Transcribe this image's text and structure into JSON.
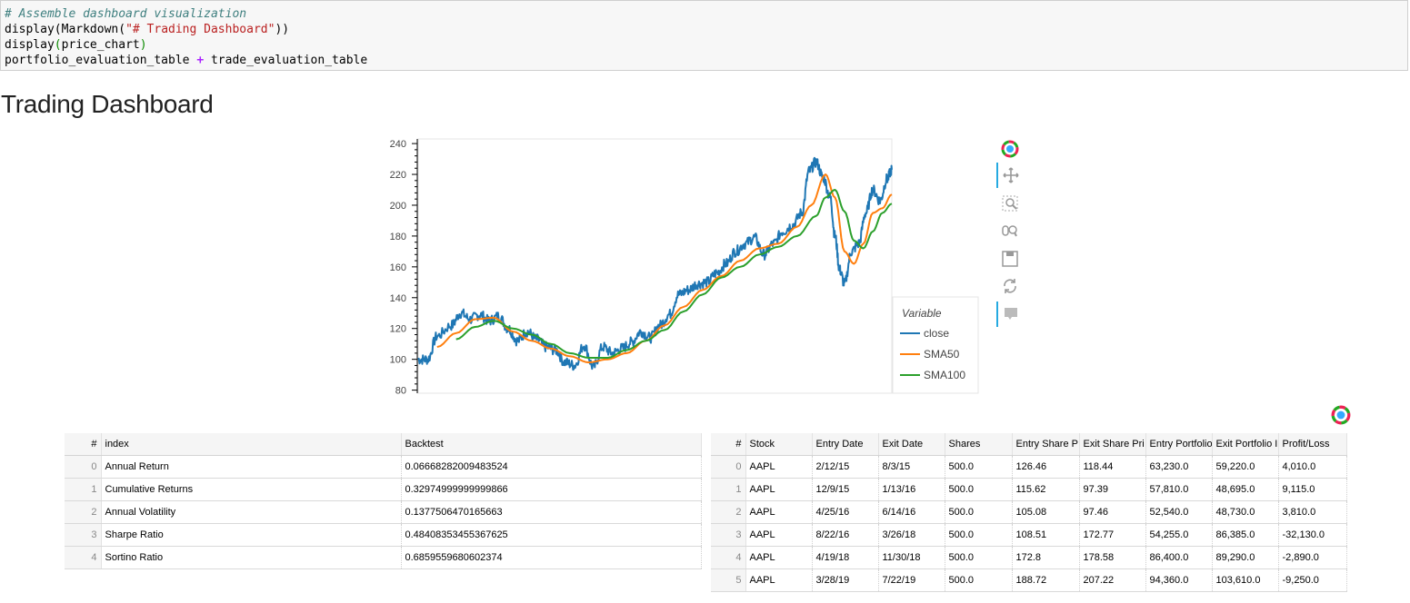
{
  "code": {
    "comment": "# Assemble dashboard visualization",
    "line2_a": "display(Markdown(",
    "line2_str": "\"# Trading Dashboard\"",
    "line2_b": "))",
    "line3_a": "display",
    "line3_paren_open": "(",
    "line3_b": "price_chart",
    "line3_paren_close": ")",
    "line4_a": "portfolio_evaluation_table ",
    "line4_op": "+",
    "line4_b": " trade_evaluation_table"
  },
  "dashboard_title": "Trading Dashboard",
  "toolbar": {
    "items": [
      "bokeh-logo-icon",
      "pan-icon",
      "box-zoom-icon",
      "wheel-zoom-icon",
      "save-icon",
      "reset-icon",
      "hover-icon"
    ]
  },
  "colors": {
    "close": "#1f77b4",
    "sma50": "#ff7f0e",
    "sma100": "#2ca02c",
    "accent": "#26aae1"
  },
  "chart_data": {
    "type": "line",
    "ylim": [
      78,
      243
    ],
    "yticks": [
      "80",
      "100",
      "120",
      "140",
      "160",
      "180",
      "200",
      "220",
      "240"
    ],
    "legend": {
      "title": "Variable",
      "placement": "outside-right-bottom",
      "entries": [
        "close",
        "SMA50",
        "SMA100"
      ]
    },
    "series": [
      {
        "name": "close",
        "anchors": [
          [
            0,
            100
          ],
          [
            0.02,
            100
          ],
          [
            0.04,
            115
          ],
          [
            0.07,
            122
          ],
          [
            0.09,
            130
          ],
          [
            0.11,
            126
          ],
          [
            0.13,
            129
          ],
          [
            0.15,
            125
          ],
          [
            0.17,
            128
          ],
          [
            0.19,
            120
          ],
          [
            0.21,
            112
          ],
          [
            0.23,
            118
          ],
          [
            0.25,
            113
          ],
          [
            0.27,
            108
          ],
          [
            0.29,
            106
          ],
          [
            0.31,
            98
          ],
          [
            0.33,
            96
          ],
          [
            0.35,
            109
          ],
          [
            0.37,
            95
          ],
          [
            0.39,
            108
          ],
          [
            0.41,
            104
          ],
          [
            0.43,
            107
          ],
          [
            0.45,
            111
          ],
          [
            0.47,
            118
          ],
          [
            0.49,
            114
          ],
          [
            0.51,
            122
          ],
          [
            0.53,
            129
          ],
          [
            0.55,
            142
          ],
          [
            0.57,
            145
          ],
          [
            0.59,
            149
          ],
          [
            0.61,
            150
          ],
          [
            0.63,
            156
          ],
          [
            0.65,
            162
          ],
          [
            0.67,
            170
          ],
          [
            0.69,
            175
          ],
          [
            0.71,
            179
          ],
          [
            0.73,
            168
          ],
          [
            0.75,
            175
          ],
          [
            0.77,
            183
          ],
          [
            0.79,
            187
          ],
          [
            0.81,
            195
          ],
          [
            0.825,
            222
          ],
          [
            0.84,
            228
          ],
          [
            0.855,
            218
          ],
          [
            0.87,
            205
          ],
          [
            0.88,
            180
          ],
          [
            0.89,
            158
          ],
          [
            0.9,
            149
          ],
          [
            0.915,
            170
          ],
          [
            0.93,
            175
          ],
          [
            0.945,
            195
          ],
          [
            0.96,
            210
          ],
          [
            0.975,
            203
          ],
          [
            0.99,
            217
          ],
          [
            1.0,
            223
          ]
        ]
      },
      {
        "name": "SMA50",
        "anchors": [
          [
            0.04,
            108
          ],
          [
            0.08,
            117
          ],
          [
            0.12,
            126
          ],
          [
            0.16,
            127
          ],
          [
            0.2,
            118
          ],
          [
            0.24,
            112
          ],
          [
            0.28,
            107
          ],
          [
            0.32,
            102
          ],
          [
            0.36,
            98
          ],
          [
            0.4,
            100
          ],
          [
            0.44,
            104
          ],
          [
            0.48,
            112
          ],
          [
            0.52,
            122
          ],
          [
            0.56,
            134
          ],
          [
            0.6,
            145
          ],
          [
            0.64,
            154
          ],
          [
            0.68,
            164
          ],
          [
            0.72,
            172
          ],
          [
            0.76,
            175
          ],
          [
            0.8,
            186
          ],
          [
            0.83,
            200
          ],
          [
            0.86,
            220
          ],
          [
            0.88,
            205
          ],
          [
            0.9,
            170
          ],
          [
            0.92,
            162
          ],
          [
            0.94,
            175
          ],
          [
            0.96,
            195
          ],
          [
            0.98,
            198
          ],
          [
            1.0,
            207
          ]
        ]
      },
      {
        "name": "SMA100",
        "anchors": [
          [
            0.08,
            113
          ],
          [
            0.12,
            121
          ],
          [
            0.16,
            125
          ],
          [
            0.2,
            120
          ],
          [
            0.24,
            116
          ],
          [
            0.28,
            110
          ],
          [
            0.32,
            104
          ],
          [
            0.36,
            101
          ],
          [
            0.4,
            101
          ],
          [
            0.44,
            106
          ],
          [
            0.48,
            112
          ],
          [
            0.52,
            119
          ],
          [
            0.56,
            131
          ],
          [
            0.6,
            142
          ],
          [
            0.64,
            153
          ],
          [
            0.68,
            160
          ],
          [
            0.72,
            168
          ],
          [
            0.76,
            173
          ],
          [
            0.8,
            180
          ],
          [
            0.84,
            193
          ],
          [
            0.86,
            205
          ],
          [
            0.88,
            210
          ],
          [
            0.9,
            196
          ],
          [
            0.92,
            177
          ],
          [
            0.94,
            172
          ],
          [
            0.96,
            183
          ],
          [
            0.98,
            195
          ],
          [
            1.0,
            201
          ]
        ]
      }
    ]
  },
  "portfolio_table": {
    "headers": [
      "#",
      "index",
      "Backtest"
    ],
    "rows": [
      [
        "0",
        "Annual Return",
        "0.06668282009483524"
      ],
      [
        "1",
        "Cumulative Returns",
        "0.32974999999999866"
      ],
      [
        "2",
        "Annual Volatility",
        "0.1377506470165663"
      ],
      [
        "3",
        "Sharpe Ratio",
        "0.48408353455367625"
      ],
      [
        "4",
        "Sortino Ratio",
        "0.6859559680602374"
      ]
    ]
  },
  "trade_table": {
    "headers": [
      "#",
      "Stock",
      "Entry Date",
      "Exit Date",
      "Shares",
      "Entry Share P",
      "Exit Share Pri",
      "Entry Portfolio",
      "Exit Portfolio I",
      "Profit/Loss"
    ],
    "rows": [
      [
        "0",
        "AAPL",
        "2/12/15",
        "8/3/15",
        "500.0",
        "126.46",
        "118.44",
        "63,230.0",
        "59,220.0",
        "4,010.0"
      ],
      [
        "1",
        "AAPL",
        "12/9/15",
        "1/13/16",
        "500.0",
        "115.62",
        "97.39",
        "57,810.0",
        "48,695.0",
        "9,115.0"
      ],
      [
        "2",
        "AAPL",
        "4/25/16",
        "6/14/16",
        "500.0",
        "105.08",
        "97.46",
        "52,540.0",
        "48,730.0",
        "3,810.0"
      ],
      [
        "3",
        "AAPL",
        "8/22/16",
        "3/26/18",
        "500.0",
        "108.51",
        "172.77",
        "54,255.0",
        "86,385.0",
        "-32,130.0"
      ],
      [
        "4",
        "AAPL",
        "4/19/18",
        "11/30/18",
        "500.0",
        "172.8",
        "178.58",
        "86,400.0",
        "89,290.0",
        "-2,890.0"
      ],
      [
        "5",
        "AAPL",
        "3/28/19",
        "7/22/19",
        "500.0",
        "188.72",
        "207.22",
        "94,360.0",
        "103,610.0",
        "-9,250.0"
      ]
    ]
  }
}
